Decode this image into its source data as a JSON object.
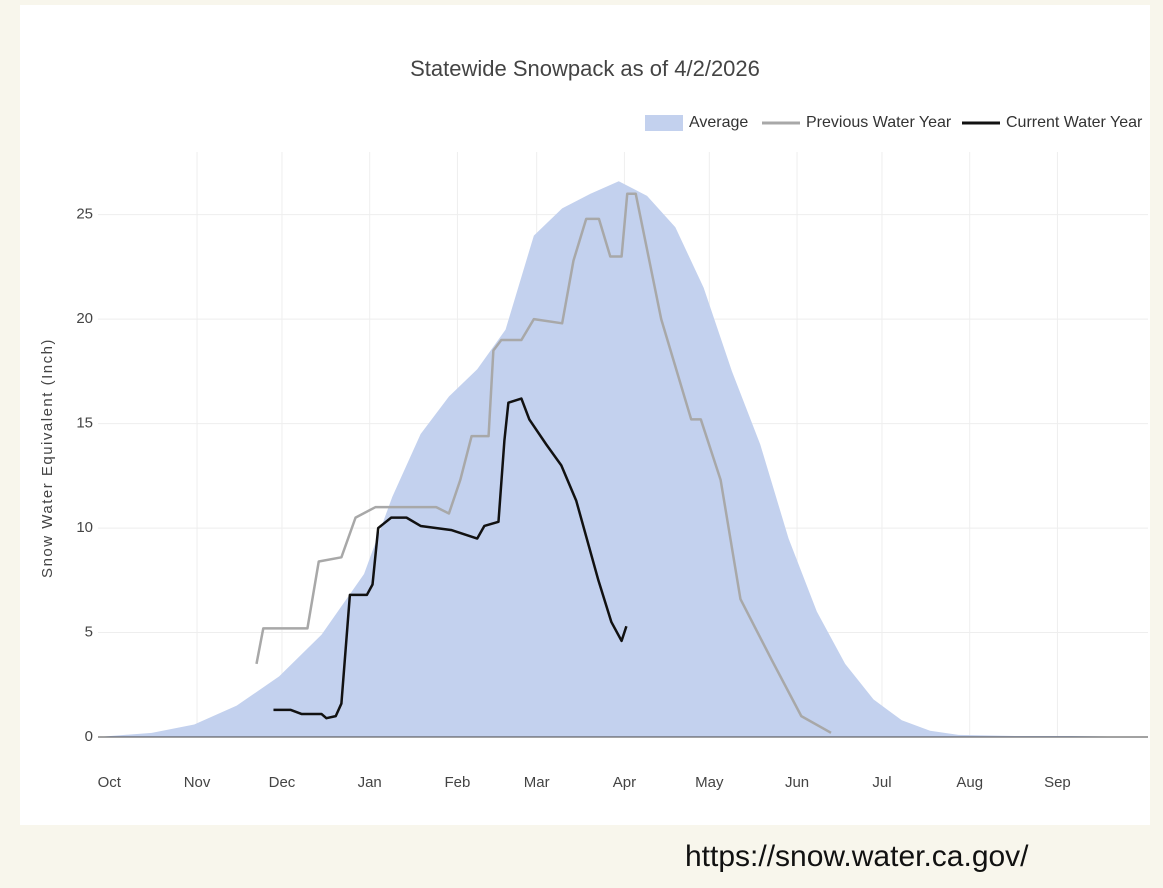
{
  "chart_data": {
    "type": "area-line",
    "title": "Statewide Snowpack as of 4/2/2026",
    "ylabel": "Snow Water Equivalent (Inch)",
    "annotation": "https://snow.water.ca.gov/",
    "xlim": [
      -4,
      367
    ],
    "ylim": [
      0,
      28
    ],
    "xticks": [
      {
        "value": 0,
        "label": "Oct"
      },
      {
        "value": 31,
        "label": "Nov"
      },
      {
        "value": 61,
        "label": "Dec"
      },
      {
        "value": 92,
        "label": "Jan"
      },
      {
        "value": 123,
        "label": "Feb"
      },
      {
        "value": 151,
        "label": "Mar"
      },
      {
        "value": 182,
        "label": "Apr"
      },
      {
        "value": 212,
        "label": "May"
      },
      {
        "value": 243,
        "label": "Jun"
      },
      {
        "value": 273,
        "label": "Jul"
      },
      {
        "value": 304,
        "label": "Aug"
      },
      {
        "value": 335,
        "label": "Sep"
      }
    ],
    "yticks": [
      0,
      5,
      10,
      15,
      20,
      25
    ],
    "grid": true,
    "legend": "top-right",
    "series": [
      {
        "name": "Average",
        "kind": "area",
        "color": "#c3d1ee",
        "x": [
          -4,
          15,
          30,
          45,
          60,
          75,
          90,
          100,
          110,
          120,
          130,
          140,
          150,
          160,
          170,
          180,
          190,
          200,
          210,
          220,
          230,
          240,
          250,
          260,
          270,
          280,
          290,
          300,
          320,
          340,
          367
        ],
        "values": [
          0,
          0.2,
          0.6,
          1.5,
          2.9,
          4.9,
          7.8,
          11.5,
          14.5,
          16.3,
          17.6,
          19.5,
          24,
          25.3,
          26,
          26.6,
          25.9,
          24.4,
          21.5,
          17.5,
          14,
          9.5,
          6,
          3.5,
          1.8,
          0.8,
          0.3,
          0.1,
          0.05,
          0.05,
          0
        ]
      },
      {
        "name": "Previous Water Year",
        "kind": "line",
        "color": "#a8a8a8",
        "x": [
          52,
          54.4,
          70,
          74,
          82,
          87,
          94,
          115.5,
          120,
          124,
          128,
          134,
          135.7,
          138.5,
          145.6,
          150,
          160,
          164,
          168.5,
          173,
          177,
          181,
          183,
          186,
          195,
          205.6,
          209,
          216,
          223,
          234,
          244.5,
          255
        ],
        "values": [
          3.5,
          5.2,
          5.2,
          8.4,
          8.6,
          10.5,
          11,
          11,
          10.7,
          12.3,
          14.4,
          14.4,
          18.5,
          19,
          19,
          20,
          19.8,
          22.8,
          24.8,
          24.8,
          23,
          23,
          26,
          26,
          20,
          15.2,
          15.2,
          12.3,
          6.6,
          3.7,
          1,
          0.2
        ]
      },
      {
        "name": "Current Water Year",
        "kind": "line",
        "color": "#111111",
        "x": [
          58,
          64,
          68,
          75,
          76.7,
          80,
          82,
          85,
          91,
          93,
          95,
          99.6,
          105,
          110,
          121,
          130,
          132.5,
          137.5,
          139.6,
          141,
          145.6,
          148.4,
          154.4,
          159.7,
          165,
          172.8,
          177.4,
          181,
          182.7
        ],
        "values": [
          1.3,
          1.3,
          1.1,
          1.1,
          0.9,
          1.0,
          1.6,
          6.8,
          6.8,
          7.3,
          10,
          10.5,
          10.5,
          10.1,
          9.9,
          9.5,
          10.1,
          10.3,
          14.2,
          16,
          16.2,
          15.2,
          14,
          13,
          11.3,
          7.5,
          5.5,
          4.6,
          5.3
        ]
      }
    ]
  }
}
